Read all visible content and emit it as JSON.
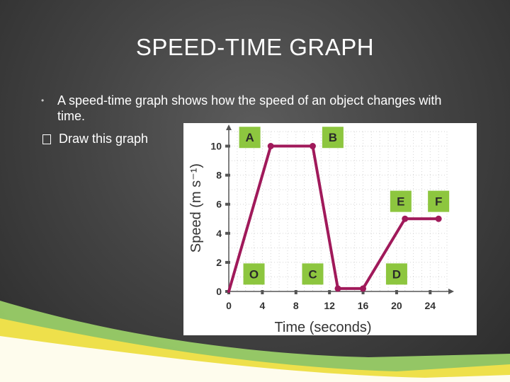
{
  "slide": {
    "title": "SPEED-TIME GRAPH",
    "bullet": "A speed-time graph shows how the speed of an object changes with time.",
    "sub_bullet": "Draw this graph"
  },
  "colors": {
    "line": "#a0195a",
    "label_box": "#8dc63f",
    "grid": "#d6d6d6",
    "accent_green": "#9fd66a",
    "accent_yellow": "#f2e24a"
  },
  "chart_data": {
    "type": "line",
    "title": "",
    "xlabel": "Time (seconds)",
    "ylabel": "Speed (m s⁻¹)",
    "xlim": [
      0,
      26
    ],
    "ylim": [
      0,
      11
    ],
    "xticks": [
      0,
      4,
      8,
      12,
      16,
      20,
      24
    ],
    "yticks": [
      0,
      2,
      4,
      6,
      8,
      10
    ],
    "grid": true,
    "series": [
      {
        "x": [
          0,
          5,
          10,
          13,
          16,
          21,
          25
        ],
        "y": [
          0,
          10,
          10,
          0.2,
          0.2,
          5,
          5
        ]
      }
    ],
    "points": [
      {
        "x": 5,
        "y": 10
      },
      {
        "x": 10,
        "y": 10
      },
      {
        "x": 13,
        "y": 0.2
      },
      {
        "x": 16,
        "y": 0.2
      },
      {
        "x": 21,
        "y": 5
      },
      {
        "x": 25,
        "y": 5
      }
    ],
    "annotations": [
      {
        "text": "A",
        "x": 2.5,
        "y": 10.6
      },
      {
        "text": "B",
        "x": 12.4,
        "y": 10.6
      },
      {
        "text": "E",
        "x": 20.5,
        "y": 6.2
      },
      {
        "text": "F",
        "x": 25.0,
        "y": 6.2
      },
      {
        "text": "O",
        "x": 3.0,
        "y": 1.2
      },
      {
        "text": "C",
        "x": 10.0,
        "y": 1.2
      },
      {
        "text": "D",
        "x": 20.0,
        "y": 1.2
      }
    ]
  }
}
